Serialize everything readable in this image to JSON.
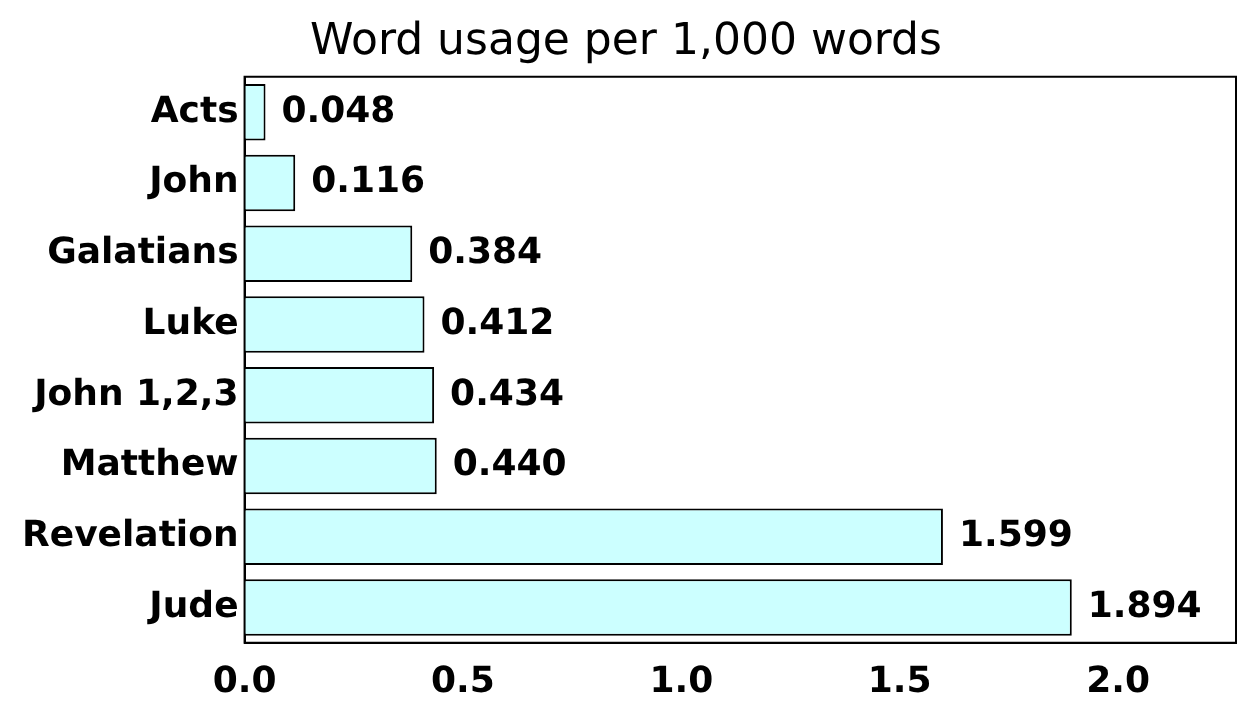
{
  "chart_data": {
    "type": "bar",
    "orientation": "horizontal",
    "title": "Word usage per 1,000 words",
    "categories": [
      "Acts",
      "John",
      "Galatians",
      "Luke",
      "John 1,2,3",
      "Matthew",
      "Revelation",
      "Jude"
    ],
    "values": [
      0.048,
      0.116,
      0.384,
      0.412,
      0.434,
      0.44,
      1.599,
      1.894
    ],
    "value_labels": [
      "0.048",
      "0.116",
      "0.384",
      "0.412",
      "0.434",
      "0.440",
      "1.599",
      "1.894"
    ],
    "color": "#ccffff",
    "xlim": [
      0,
      2.27
    ],
    "xticks": [
      {
        "value": 0,
        "label": "0.0"
      },
      {
        "value": 0.5,
        "label": "0.5"
      },
      {
        "value": 1,
        "label": "1.0"
      },
      {
        "value": 1.5,
        "label": "1.5"
      },
      {
        "value": 2,
        "label": "2.0"
      }
    ],
    "grid": false,
    "legend": false
  }
}
